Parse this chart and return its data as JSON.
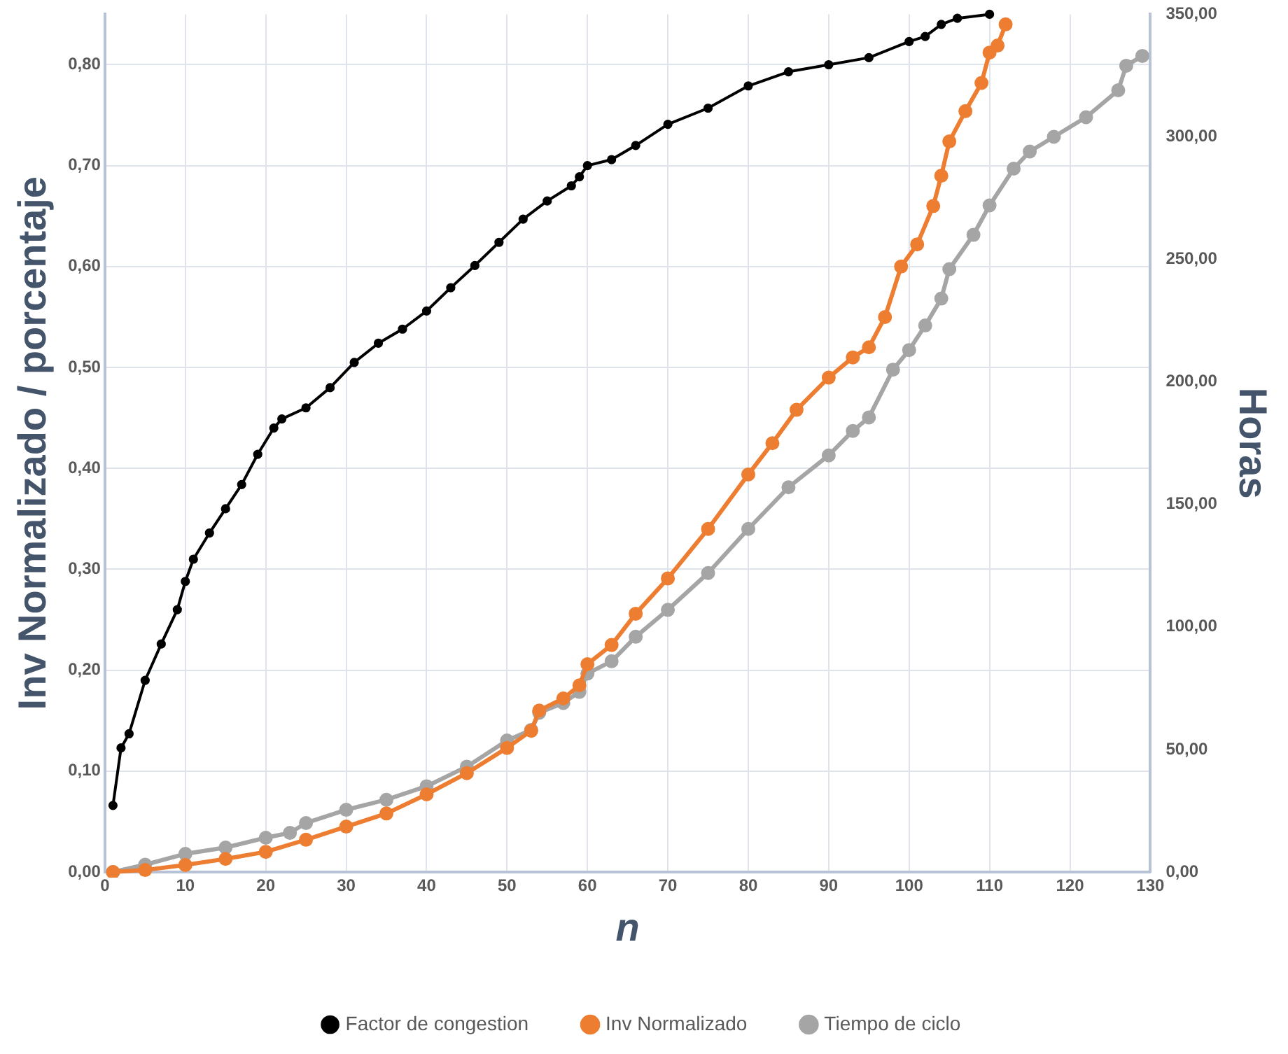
{
  "chart_data": {
    "type": "line",
    "xlabel": "n",
    "ylabel": "Inv Normalizado / porcentaje",
    "y2label": "Horas",
    "xlim": [
      0,
      130
    ],
    "xticks": [
      0,
      10,
      20,
      30,
      40,
      50,
      60,
      70,
      80,
      90,
      100,
      110,
      120,
      130
    ],
    "ylim": [
      0,
      0.85
    ],
    "yticks": [
      {
        "value": 0,
        "label": "0,00"
      },
      {
        "value": 0.1,
        "label": "0,10"
      },
      {
        "value": 0.2,
        "label": "0,20"
      },
      {
        "value": 0.3,
        "label": "0,30"
      },
      {
        "value": 0.4,
        "label": "0,40"
      },
      {
        "value": 0.5,
        "label": "0,50"
      },
      {
        "value": 0.6,
        "label": "0,60"
      },
      {
        "value": 0.7,
        "label": "0,70"
      },
      {
        "value": 0.8,
        "label": "0,80"
      }
    ],
    "y2lim": [
      0,
      350
    ],
    "y2ticks": [
      {
        "value": 0,
        "label": "0,00"
      },
      {
        "value": 50,
        "label": "50,00"
      },
      {
        "value": 100,
        "label": "100,00"
      },
      {
        "value": 150,
        "label": "150,00"
      },
      {
        "value": 200,
        "label": "200,00"
      },
      {
        "value": 250,
        "label": "250,00"
      },
      {
        "value": 300,
        "label": "300,00"
      },
      {
        "value": 350,
        "label": "350,00"
      }
    ],
    "grid": true,
    "legend": "bottom",
    "marker": "circle",
    "series": [
      {
        "name": "Factor de congestion",
        "color": "#000000",
        "x": [
          1,
          2,
          3,
          5,
          7,
          9,
          10,
          11,
          13,
          15,
          17,
          19,
          21,
          22,
          25,
          28,
          31,
          34,
          37,
          40,
          43,
          46,
          49,
          52,
          55,
          58,
          59,
          60,
          63,
          66,
          70,
          75,
          80,
          85,
          90,
          95,
          100,
          102,
          104,
          106,
          110
        ],
        "values": [
          0.066,
          0.123,
          0.137,
          0.19,
          0.226,
          0.26,
          0.288,
          0.31,
          0.336,
          0.36,
          0.384,
          0.414,
          0.44,
          0.449,
          0.46,
          0.48,
          0.505,
          0.524,
          0.538,
          0.556,
          0.579,
          0.601,
          0.624,
          0.647,
          0.665,
          0.68,
          0.689,
          0.7,
          0.706,
          0.72,
          0.741,
          0.757,
          0.779,
          0.793,
          0.8,
          0.807,
          0.823,
          0.828,
          0.84,
          0.846,
          0.85
        ]
      },
      {
        "name": "Inv Normalizado",
        "color": "#ed7d31",
        "x": [
          1,
          5,
          10,
          15,
          20,
          25,
          30,
          35,
          40,
          45,
          50,
          53,
          54,
          57,
          59,
          60,
          63,
          66,
          70,
          75,
          80,
          83,
          86,
          90,
          93,
          95,
          97,
          99,
          101,
          103,
          104,
          105,
          107,
          109,
          110,
          111,
          112
        ],
        "values": [
          0.0,
          0.002,
          0.007,
          0.013,
          0.02,
          0.032,
          0.045,
          0.058,
          0.077,
          0.098,
          0.123,
          0.14,
          0.16,
          0.172,
          0.185,
          0.206,
          0.225,
          0.256,
          0.291,
          0.34,
          0.394,
          0.425,
          0.458,
          0.49,
          0.51,
          0.52,
          0.55,
          0.6,
          0.622,
          0.66,
          0.69,
          0.724,
          0.754,
          0.782,
          0.812,
          0.819,
          0.84
        ]
      },
      {
        "name": "Tiempo de ciclo",
        "color": "#a5a5a5",
        "axis": "y2",
        "x": [
          1,
          5,
          10,
          15,
          20,
          23,
          25,
          30,
          35,
          40,
          45,
          50,
          53,
          54,
          57,
          59,
          60,
          63,
          66,
          70,
          75,
          80,
          85,
          90,
          93,
          95,
          98,
          100,
          102,
          104,
          105,
          108,
          110,
          113,
          115,
          118,
          122,
          126,
          127,
          129
        ],
        "values": [
          0,
          3,
          7.4,
          10,
          14,
          16,
          20,
          25.4,
          29.5,
          35,
          43,
          53.7,
          58,
          65,
          69,
          73.5,
          81,
          86,
          96,
          107,
          122,
          140,
          157,
          170,
          180,
          185.5,
          205,
          213,
          223,
          234,
          246,
          260,
          272,
          287,
          294,
          300,
          308,
          319,
          329,
          333
        ]
      }
    ]
  }
}
